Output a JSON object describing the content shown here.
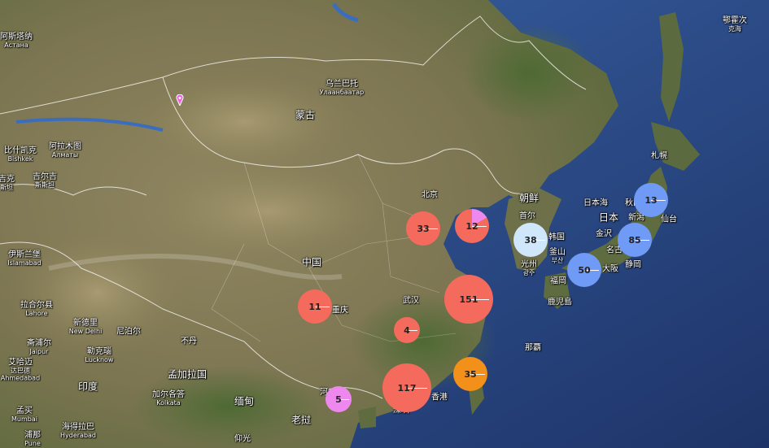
{
  "map": {
    "colors": {
      "sea": "#2c4f93",
      "deep_sea": "#20386d",
      "land": "#8a8159",
      "mountains": "#6a6345",
      "cluster_red": "#f46b5d",
      "cluster_blue": "#6f9af5",
      "cluster_lightblue": "#cfe6fb",
      "cluster_orange": "#f3901a",
      "cluster_pink": "#ee88ee"
    },
    "labels": [
      {
        "id": "okhotsk",
        "text": "鄂霍次",
        "sub": "克海"
      },
      {
        "id": "astana",
        "text": "阿斯塔纳",
        "sub": "Астана"
      },
      {
        "id": "ulaanbaatar",
        "text": "乌兰巴托",
        "sub": "Улаанбаатар"
      },
      {
        "id": "mongolia",
        "text": "蒙古",
        "big": true
      },
      {
        "id": "sapporo",
        "text": "札幌"
      },
      {
        "id": "almaty",
        "text": "阿拉木图",
        "sub": "Алматы"
      },
      {
        "id": "bishkek",
        "text": "比什凯克",
        "sub": "Bishkek"
      },
      {
        "id": "kyrgyz",
        "text": "吉尔吉",
        "sub": "斯斯坦"
      },
      {
        "id": "tajik",
        "text": "吉克",
        "sub": "斯坦"
      },
      {
        "id": "beijing",
        "text": "北京"
      },
      {
        "id": "korea",
        "text": "朝鲜",
        "big": true
      },
      {
        "id": "seaofjapan",
        "text": "日本海"
      },
      {
        "id": "akita",
        "text": "秋田"
      },
      {
        "id": "japan",
        "text": "日本",
        "big": true
      },
      {
        "id": "sendai",
        "text": "仙台"
      },
      {
        "id": "niigata",
        "text": "新潟"
      },
      {
        "id": "seoul",
        "text": "首尔"
      },
      {
        "id": "southkorea",
        "text": "韩国"
      },
      {
        "id": "kanazawa",
        "text": "金沢"
      },
      {
        "id": "nagoya",
        "text": "名古"
      },
      {
        "id": "busan",
        "text": "釜山",
        "sub": "부산"
      },
      {
        "id": "gwangju",
        "text": "光州",
        "sub": "광주"
      },
      {
        "id": "islamabad",
        "text": "伊斯兰堡",
        "sub": "Islamabad"
      },
      {
        "id": "china",
        "text": "中国",
        "big": true
      },
      {
        "id": "osaka",
        "text": "大阪"
      },
      {
        "id": "shizuoka",
        "text": "静岡"
      },
      {
        "id": "fukuoka",
        "text": "福岡"
      },
      {
        "id": "kagoshima",
        "text": "鹿児島"
      },
      {
        "id": "lahore",
        "text": "拉合尔县",
        "sub": "Lahore"
      },
      {
        "id": "chongqing",
        "text": "重庆"
      },
      {
        "id": "wuhan",
        "text": "武汉"
      },
      {
        "id": "newdelhi",
        "text": "新德里",
        "sub": "New Delhi"
      },
      {
        "id": "nepal",
        "text": "尼泊尔"
      },
      {
        "id": "bhutan",
        "text": "不丹"
      },
      {
        "id": "jaipur",
        "text": "斋浦尔",
        "sub": "Jaipur"
      },
      {
        "id": "lucknow",
        "text": "勒克瑙",
        "sub": "Lucknow"
      },
      {
        "id": "naha",
        "text": "那覇"
      },
      {
        "id": "ahmedabad",
        "text": "艾哈迈",
        "sub": "达巴德",
        "sub2": "Ahmedabad"
      },
      {
        "id": "bangladesh",
        "text": "孟加拉国",
        "big": true
      },
      {
        "id": "india",
        "text": "印度",
        "big": true
      },
      {
        "id": "kolkata",
        "text": "加尔各答",
        "sub": "Kolkata"
      },
      {
        "id": "myanmar",
        "text": "缅甸",
        "big": true
      },
      {
        "id": "hanoi",
        "text": "河"
      },
      {
        "id": "hongkong",
        "text": "香港"
      },
      {
        "id": "mumbai",
        "text": "孟买",
        "sub": "Mumbai"
      },
      {
        "id": "hyderabad",
        "text": "海得拉巴",
        "sub": "Hyderabad"
      },
      {
        "id": "laos",
        "text": "老挝",
        "big": true
      },
      {
        "id": "pune",
        "text": "浦那",
        "sub": "Pune"
      },
      {
        "id": "yangon",
        "text": "仰光"
      },
      {
        "id": "shenzhen",
        "text": "深圳"
      },
      {
        "id": "mongol_pin_area",
        "text": ""
      }
    ],
    "clusters": [
      {
        "id": "c33",
        "count": "33",
        "color": "red"
      },
      {
        "id": "c12",
        "count": "12",
        "color": "red",
        "pie": "pink"
      },
      {
        "id": "c38",
        "count": "38",
        "color": "lightblue"
      },
      {
        "id": "c13",
        "count": "13",
        "color": "blue"
      },
      {
        "id": "c85",
        "count": "85",
        "color": "blue"
      },
      {
        "id": "c50",
        "count": "50",
        "color": "blue"
      },
      {
        "id": "c11",
        "count": "11",
        "color": "red"
      },
      {
        "id": "c151",
        "count": "151",
        "color": "red"
      },
      {
        "id": "c4",
        "count": "4",
        "color": "red"
      },
      {
        "id": "c117",
        "count": "117",
        "color": "red"
      },
      {
        "id": "c35",
        "count": "35",
        "color": "orange"
      },
      {
        "id": "c5",
        "count": "5",
        "color": "pink"
      }
    ],
    "pins": [
      {
        "id": "pin1",
        "icon": "map-pin-icon",
        "color": "#ee66dd"
      }
    ]
  }
}
